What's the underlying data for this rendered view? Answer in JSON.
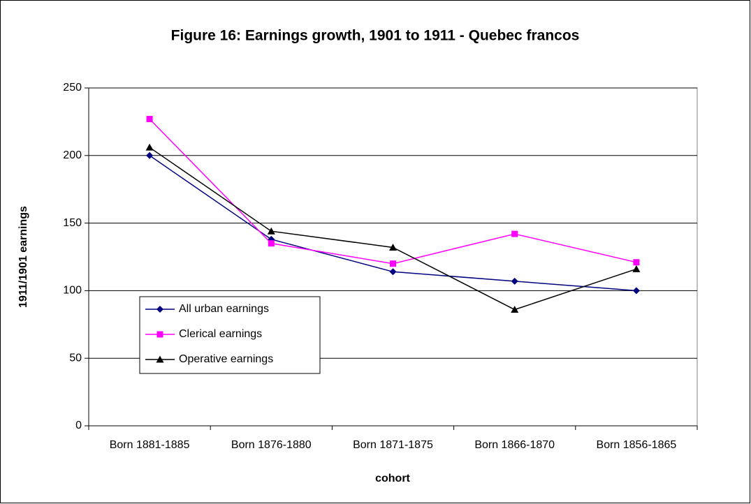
{
  "chart_data": {
    "type": "line",
    "title": "Figure 16: Earnings growth, 1901 to 1911 - Quebec francos",
    "x_label": "cohort",
    "y_label": "1911/1901 earnings",
    "categories": [
      "Born 1881-1885",
      "Born 1876-1880",
      "Born 1871-1875",
      "Born 1866-1870",
      "Born 1856-1865"
    ],
    "series": [
      {
        "name": "All urban earnings",
        "color": "#000080",
        "marker": "diamond",
        "values": [
          200,
          138,
          114,
          107,
          100
        ]
      },
      {
        "name": "Clerical earnings",
        "color": "#ff00ff",
        "marker": "square",
        "values": [
          227,
          135,
          120,
          142,
          121
        ]
      },
      {
        "name": "Operative earnings",
        "color": "#000000",
        "marker": "triangle",
        "values": [
          206,
          144,
          132,
          86,
          116
        ]
      }
    ],
    "ylim": [
      0,
      250
    ],
    "yticks": [
      0,
      50,
      100,
      150,
      200,
      250
    ],
    "grid": true,
    "legend": "lower-left"
  }
}
